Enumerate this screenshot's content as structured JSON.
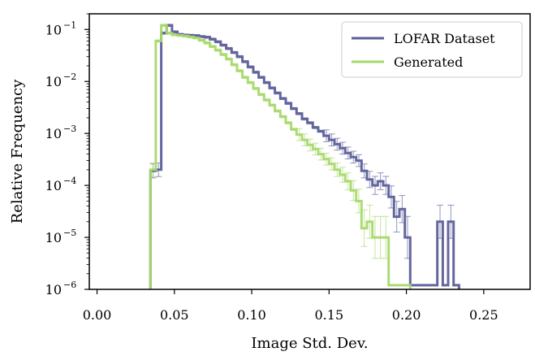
{
  "chart_data": {
    "type": "histogram-step",
    "title": "",
    "xlabel": "Image Std. Dev.",
    "ylabel": "Relative Frequency",
    "xlim": [
      -0.005,
      0.28
    ],
    "ylim": [
      1e-06,
      0.2
    ],
    "yscale": "log",
    "xticks": [
      0.0,
      0.05,
      0.1,
      0.15,
      0.2,
      0.25
    ],
    "xtick_labels": [
      "0.00",
      "0.05",
      "0.10",
      "0.15",
      "0.20",
      "0.25"
    ],
    "yticks": [
      1e-06,
      1e-05,
      0.0001,
      0.001,
      0.01,
      0.1
    ],
    "ytick_labels": [
      {
        "base": "10",
        "exp": "−6"
      },
      {
        "base": "10",
        "exp": "−5"
      },
      {
        "base": "10",
        "exp": "−4"
      },
      {
        "base": "10",
        "exp": "−3"
      },
      {
        "base": "10",
        "exp": "−2"
      },
      {
        "base": "10",
        "exp": "−1"
      }
    ],
    "legend_position": "top-right",
    "series": [
      {
        "name": "LOFAR Dataset",
        "color": "#5c5f99",
        "bin_width": 0.0035,
        "bins_start": 0.0345,
        "values": [
          0.00019,
          0.0002,
          0.085,
          0.12,
          0.09,
          0.08,
          0.078,
          0.077,
          0.076,
          0.073,
          0.071,
          0.065,
          0.058,
          0.05,
          0.043,
          0.036,
          0.03,
          0.024,
          0.019,
          0.015,
          0.012,
          0.0095,
          0.0075,
          0.006,
          0.0047,
          0.0038,
          0.003,
          0.0024,
          0.0019,
          0.0016,
          0.0013,
          0.0011,
          0.0009,
          0.00075,
          0.00062,
          0.00052,
          0.00042,
          0.00035,
          0.0003,
          0.00019,
          0.00013,
          0.0001,
          0.00012,
          0.0001,
          6e-05,
          2.5e-05,
          3.5e-05,
          1e-05,
          1.2e-06,
          1.2e-06,
          1.2e-06,
          1.2e-06,
          1.2e-06,
          2e-05,
          1.2e-06,
          2e-05,
          1.2e-06
        ]
      },
      {
        "name": "Generated",
        "color": "#a6d96a",
        "bin_width": 0.0035,
        "bins_start": 0.0345,
        "values": [
          0.0002,
          0.06,
          0.12,
          0.085,
          0.079,
          0.077,
          0.075,
          0.072,
          0.069,
          0.062,
          0.055,
          0.047,
          0.04,
          0.033,
          0.027,
          0.021,
          0.016,
          0.012,
          0.0095,
          0.0073,
          0.0056,
          0.0044,
          0.0035,
          0.0027,
          0.0021,
          0.0016,
          0.0012,
          0.00095,
          0.00075,
          0.0006,
          0.0005,
          0.0004,
          0.00032,
          0.00026,
          0.0002,
          0.00016,
          0.00012,
          8e-05,
          5e-05,
          1.5e-05,
          2e-05,
          1e-05,
          1e-05,
          1e-05,
          1.2e-06,
          1.2e-06,
          1.2e-06,
          1.2e-06
        ]
      }
    ]
  }
}
